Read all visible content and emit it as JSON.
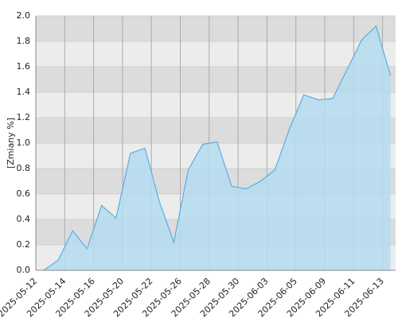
{
  "chart_data": {
    "type": "area",
    "y_label": "[Zmiany %]",
    "categories": [
      "2025-05-12",
      null,
      "2025-05-14",
      null,
      "2025-05-16",
      null,
      "2025-05-20",
      null,
      "2025-05-22",
      null,
      "2025-05-26",
      null,
      "2025-05-28",
      null,
      "2025-05-30",
      null,
      "2025-06-03",
      null,
      "2025-06-05",
      null,
      "2025-06-09",
      null,
      "2025-06-11",
      null,
      "2025-06-13"
    ],
    "values": [
      0.0,
      0.08,
      0.31,
      0.17,
      0.51,
      0.41,
      0.92,
      0.96,
      0.54,
      0.22,
      0.79,
      0.99,
      1.01,
      0.66,
      0.64,
      0.7,
      0.79,
      1.11,
      1.38,
      1.34,
      1.35,
      1.58,
      1.81,
      1.92,
      1.53
    ],
    "color": "#5aaee6",
    "fill": "#b5dcee",
    "ylim": [
      0,
      2
    ],
    "yticks": [
      {
        "value": 0,
        "label": "0.0"
      },
      0.2,
      0.4,
      0.6,
      0.8,
      {
        "value": 1,
        "label": "1.0"
      },
      1.2,
      1.4,
      1.6,
      1.8,
      {
        "value": 2,
        "label": "2.0"
      }
    ],
    "grid": true
  }
}
